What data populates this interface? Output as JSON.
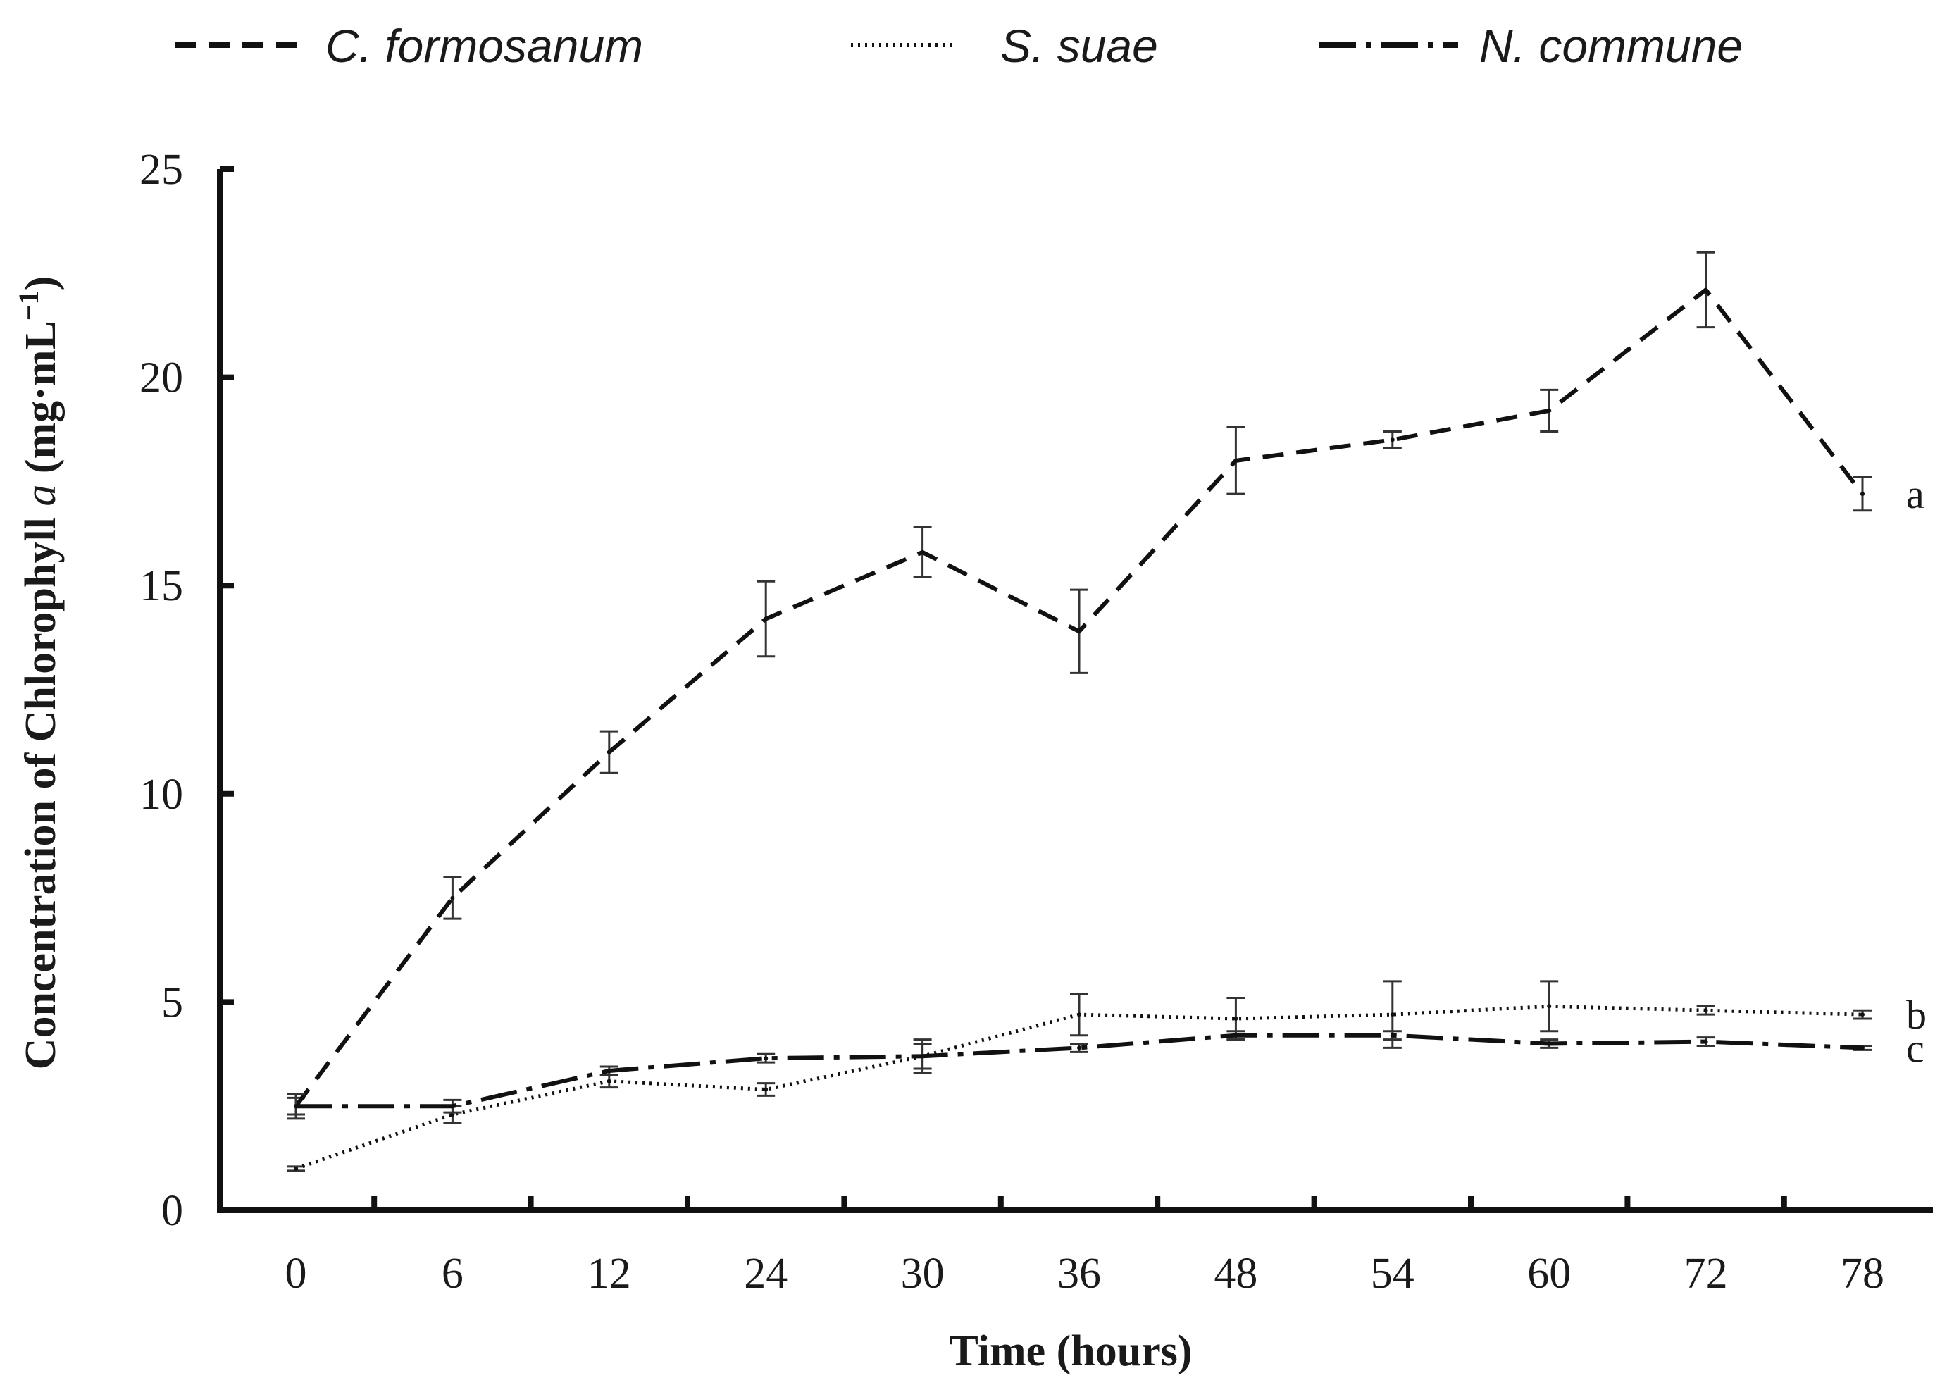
{
  "chart_data": {
    "type": "line",
    "categories": [
      "0",
      "6",
      "12",
      "24",
      "30",
      "36",
      "48",
      "54",
      "60",
      "72",
      "78"
    ],
    "ylim": [
      0,
      25
    ],
    "yticks": [
      "0",
      "5",
      "10",
      "15",
      "20",
      "25"
    ],
    "xlabel": "Time (hours)",
    "ylabel": {
      "prefix": "Concentration of Chlorophyll ",
      "italic": "a",
      "suffix": " (mg·mL",
      "superscript": "−1",
      "close": ")"
    },
    "legend_position": "top",
    "series": [
      {
        "name": "C. formosanum",
        "style": "dashed",
        "values": [
          2.5,
          7.5,
          11.0,
          14.2,
          15.8,
          13.9,
          18.0,
          18.5,
          19.2,
          22.1,
          17.2
        ],
        "errors": [
          0.2,
          0.5,
          0.5,
          0.9,
          0.6,
          1.0,
          0.8,
          0.2,
          0.5,
          0.9,
          0.4
        ],
        "significance": "a"
      },
      {
        "name": "S. suae",
        "style": "dotted",
        "values": [
          1.0,
          2.3,
          3.1,
          2.9,
          3.7,
          4.7,
          4.6,
          4.7,
          4.9,
          4.8,
          4.7
        ],
        "errors": [
          0.05,
          0.2,
          0.15,
          0.15,
          0.4,
          0.5,
          0.5,
          0.8,
          0.6,
          0.1,
          0.1
        ],
        "significance": "b"
      },
      {
        "name": "N. commune",
        "style": "dashdot",
        "values": [
          2.5,
          2.5,
          3.35,
          3.65,
          3.7,
          3.9,
          4.2,
          4.2,
          4.0,
          4.05,
          3.9
        ],
        "errors": [
          0.3,
          0.15,
          0.1,
          0.1,
          0.3,
          0.1,
          0.1,
          0.1,
          0.1,
          0.1,
          0.05
        ],
        "significance": "c"
      }
    ]
  }
}
